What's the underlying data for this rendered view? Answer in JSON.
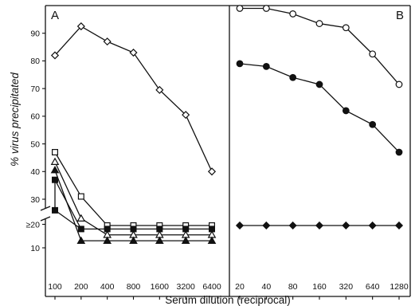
{
  "chart_data": [
    {
      "type": "line",
      "panel_label": "A",
      "ylabel": "% virus precipitated",
      "xlabel": "Serum dilution (reciprocal)",
      "x_scale": "log",
      "x": [
        100,
        200,
        400,
        800,
        1600,
        3200,
        6400
      ],
      "x_tick_labels": [
        "100",
        "200",
        "400",
        "800",
        "1600",
        "3200",
        "6400"
      ],
      "y_ticks": [
        10,
        20,
        30,
        40,
        50,
        60,
        70,
        80,
        90
      ],
      "y_tick_labels": [
        "10",
        "≥20",
        "30",
        "40",
        "50",
        "60",
        "70",
        "80",
        "90"
      ],
      "y_axis_break": "between ≥20 and 30",
      "ylim": [
        5,
        100
      ],
      "grid": false,
      "series": [
        {
          "marker": "open-diamond",
          "x": [
            100,
            200,
            400,
            800,
            1600,
            3200,
            6400
          ],
          "values": [
            82,
            92.5,
            87,
            83,
            69.5,
            60.5,
            40
          ]
        },
        {
          "marker": "open-square",
          "x": [
            100,
            200,
            400,
            800,
            1600,
            3200,
            6400
          ],
          "values": [
            47,
            31,
            19.5,
            19.5,
            19.5,
            19.5,
            19.5
          ]
        },
        {
          "marker": "open-triangle",
          "x": [
            100,
            200,
            400,
            800,
            1600,
            3200,
            6400
          ],
          "values": [
            43.5,
            22.5,
            15.5,
            15.5,
            15.5,
            15.5,
            15.5
          ]
        },
        {
          "marker": "filled-triangle",
          "x": [
            100,
            200,
            400,
            800,
            1600,
            3200,
            6400
          ],
          "values": [
            40.5,
            13,
            13,
            13,
            13,
            13,
            13
          ]
        },
        {
          "marker": "filled-square",
          "x": [
            100,
            200,
            400,
            800,
            1600,
            3200,
            6400
          ],
          "values": [
            37,
            18,
            18,
            18,
            18,
            18,
            18
          ]
        },
        {
          "marker": "filled-square",
          "x": [
            100
          ],
          "values": [
            26
          ]
        }
      ],
      "connectors": [
        {
          "from": {
            "x": 100,
            "value": 26
          },
          "to": {
            "x": 100,
            "value": 37
          }
        },
        {
          "from": {
            "x": 100,
            "value": 26
          },
          "to": {
            "x": 200,
            "value": 18
          }
        }
      ]
    },
    {
      "type": "line",
      "panel_label": "B",
      "x_scale": "log",
      "x": [
        20,
        40,
        80,
        160,
        320,
        640,
        1280
      ],
      "x_tick_labels": [
        "20",
        "40",
        "80",
        "160",
        "320",
        "640",
        "1280"
      ],
      "ylim": [
        5,
        100
      ],
      "grid": false,
      "series": [
        {
          "marker": "open-circle",
          "x": [
            20,
            40,
            80,
            160,
            320,
            640,
            1280
          ],
          "values": [
            99,
            99,
            97,
            93.5,
            92,
            82.5,
            71.5
          ]
        },
        {
          "marker": "filled-circle",
          "x": [
            20,
            40,
            80,
            160,
            320,
            640,
            1280
          ],
          "values": [
            79,
            78,
            74,
            71.5,
            62,
            57,
            47
          ]
        },
        {
          "marker": "filled-diamond",
          "x": [
            20,
            40,
            80,
            160,
            320,
            640,
            1280
          ],
          "values": [
            19.5,
            19.5,
            19.5,
            19.5,
            19.5,
            19.5,
            19.5
          ]
        }
      ]
    }
  ]
}
